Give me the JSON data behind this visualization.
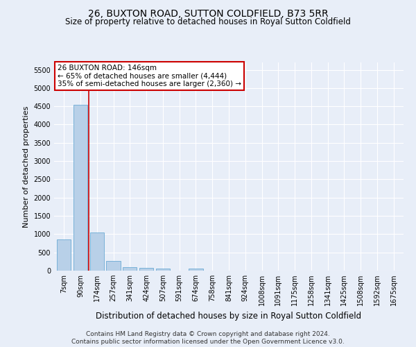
{
  "title": "26, BUXTON ROAD, SUTTON COLDFIELD, B73 5RR",
  "subtitle": "Size of property relative to detached houses in Royal Sutton Coldfield",
  "xlabel": "Distribution of detached houses by size in Royal Sutton Coldfield",
  "ylabel": "Number of detached properties",
  "footer_line1": "Contains HM Land Registry data © Crown copyright and database right 2024.",
  "footer_line2": "Contains public sector information licensed under the Open Government Licence v3.0.",
  "annotation_title": "26 BUXTON ROAD: 146sqm",
  "annotation_line1": "← 65% of detached houses are smaller (4,444)",
  "annotation_line2": "35% of semi-detached houses are larger (2,360) →",
  "bar_categories": [
    "7sqm",
    "90sqm",
    "174sqm",
    "257sqm",
    "341sqm",
    "424sqm",
    "507sqm",
    "591sqm",
    "674sqm",
    "758sqm",
    "841sqm",
    "924sqm",
    "1008sqm",
    "1091sqm",
    "1175sqm",
    "1258sqm",
    "1341sqm",
    "1425sqm",
    "1508sqm",
    "1592sqm",
    "1675sqm"
  ],
  "bar_values": [
    850,
    4550,
    1050,
    270,
    90,
    80,
    50,
    0,
    50,
    0,
    0,
    0,
    0,
    0,
    0,
    0,
    0,
    0,
    0,
    0,
    0
  ],
  "bar_color": "#b8d0e8",
  "bar_edge_color": "#6aaad4",
  "red_line_color": "#cc0000",
  "ylim_max": 5700,
  "ytick_interval": 500,
  "background_color": "#e8eef8",
  "grid_color": "#ffffff",
  "annotation_box_facecolor": "#ffffff",
  "annotation_box_edgecolor": "#cc0000",
  "title_fontsize": 10,
  "subtitle_fontsize": 8.5,
  "ylabel_fontsize": 8,
  "xlabel_fontsize": 8.5,
  "footer_fontsize": 6.5,
  "annotation_fontsize": 7.5,
  "tick_fontsize": 7
}
